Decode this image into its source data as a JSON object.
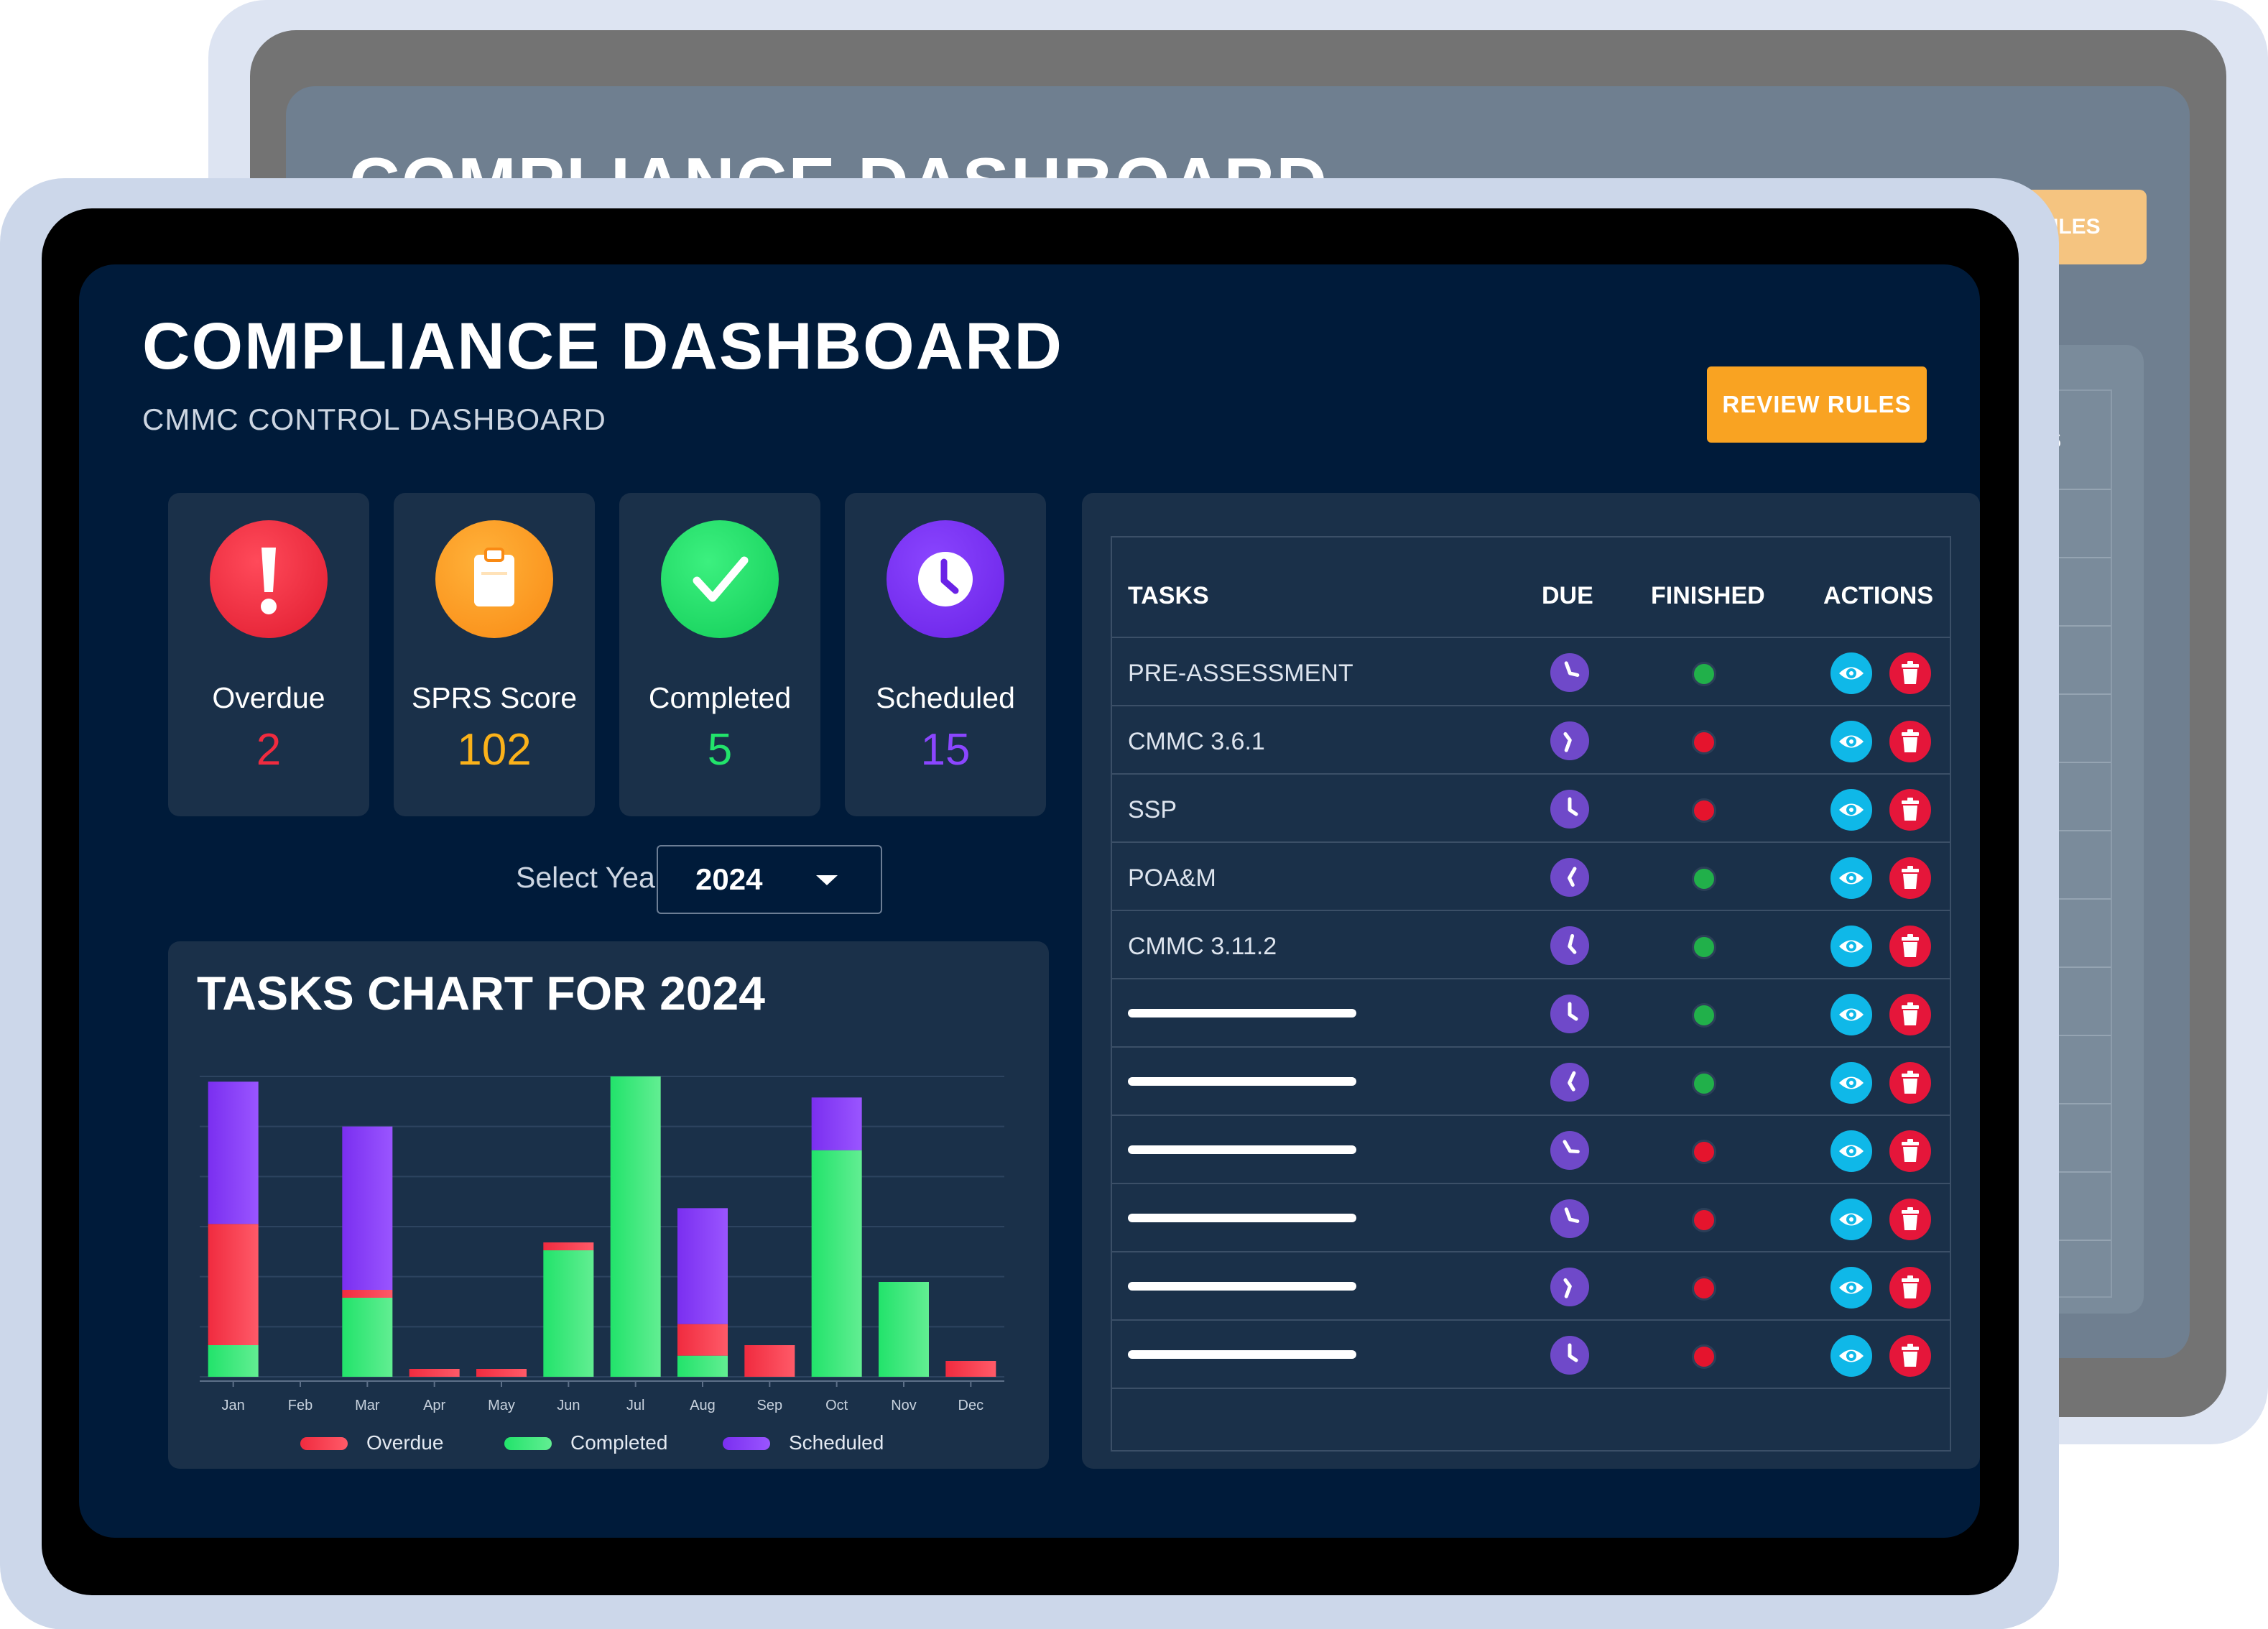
{
  "colors": {
    "overdue": "#f02b3f",
    "completed": "#22e36b",
    "scheduled": "#7a2ff0",
    "sprs": "#fb9a1a",
    "accent_button": "#f9a322",
    "finished_yes": "#21b04a",
    "finished_no": "#e5142d"
  },
  "back_device": {
    "title": "COMPLIANCE DASHBOARD",
    "review_button": "RULES",
    "actions_header": "ONS"
  },
  "header": {
    "title": "COMPLIANCE DASHBOARD",
    "subtitle": "CMMC CONTROL DASHBOARD",
    "review_button": "REVIEW RULES"
  },
  "stats": [
    {
      "label": "Overdue",
      "value": "2",
      "icon": "exclamation-icon"
    },
    {
      "label": "SPRS Score",
      "value": "102",
      "icon": "clipboard-icon"
    },
    {
      "label": "Completed",
      "value": "5",
      "icon": "checkmark-icon"
    },
    {
      "label": "Scheduled",
      "value": "15",
      "icon": "clock-icon"
    }
  ],
  "year_selector": {
    "label": "Select Year:",
    "value": "2024"
  },
  "chart_title": "TASKS CHART FOR 2024",
  "chart_data": {
    "type": "bar",
    "stacked": true,
    "title": "TASKS CHART FOR 2024",
    "categories": [
      "Jan",
      "Feb",
      "Mar",
      "Apr",
      "May",
      "Jun",
      "Jul",
      "Aug",
      "Sep",
      "Oct",
      "Nov",
      "Dec"
    ],
    "series": [
      {
        "name": "Completed",
        "values": [
          0.6,
          0,
          1.5,
          0,
          0,
          2.4,
          5.7,
          0.4,
          0,
          4.3,
          1.8,
          0
        ]
      },
      {
        "name": "Overdue",
        "values": [
          2.3,
          0,
          0.15,
          0.15,
          0.15,
          0.15,
          0,
          0.6,
          0.6,
          0,
          0,
          0.3
        ]
      },
      {
        "name": "Scheduled",
        "values": [
          2.7,
          0,
          3.1,
          0,
          0,
          0,
          0,
          2.2,
          0,
          1.0,
          0,
          0
        ]
      }
    ],
    "stack_order": [
      "Completed",
      "Overdue",
      "Scheduled"
    ],
    "ylim": [
      0,
      5.7
    ],
    "grid": true,
    "legend": "bottom"
  },
  "tasks_table": {
    "headers": {
      "tasks": "TASKS",
      "due": "DUE",
      "finished": "FINISHED",
      "actions": "ACTIONS"
    },
    "rows": [
      {
        "name": "PRE-ASSESSMENT",
        "finished": true,
        "clock_angle": -20
      },
      {
        "name": "CMMC 3.6.1",
        "finished": false,
        "clock_angle": 200
      },
      {
        "name": "SSP",
        "finished": false,
        "clock_angle": 0
      },
      {
        "name": "POA&M",
        "finished": true,
        "clock_angle": 30
      },
      {
        "name": "CMMC 3.11.2",
        "finished": true,
        "clock_angle": 15
      },
      {
        "name": "",
        "finished": true,
        "clock_angle": 0
      },
      {
        "name": "",
        "finished": true,
        "clock_angle": 25
      },
      {
        "name": "",
        "finished": false,
        "clock_angle": -30
      },
      {
        "name": "",
        "finished": false,
        "clock_angle": -20
      },
      {
        "name": "",
        "finished": false,
        "clock_angle": 200
      },
      {
        "name": "",
        "finished": false,
        "clock_angle": 0
      }
    ]
  }
}
